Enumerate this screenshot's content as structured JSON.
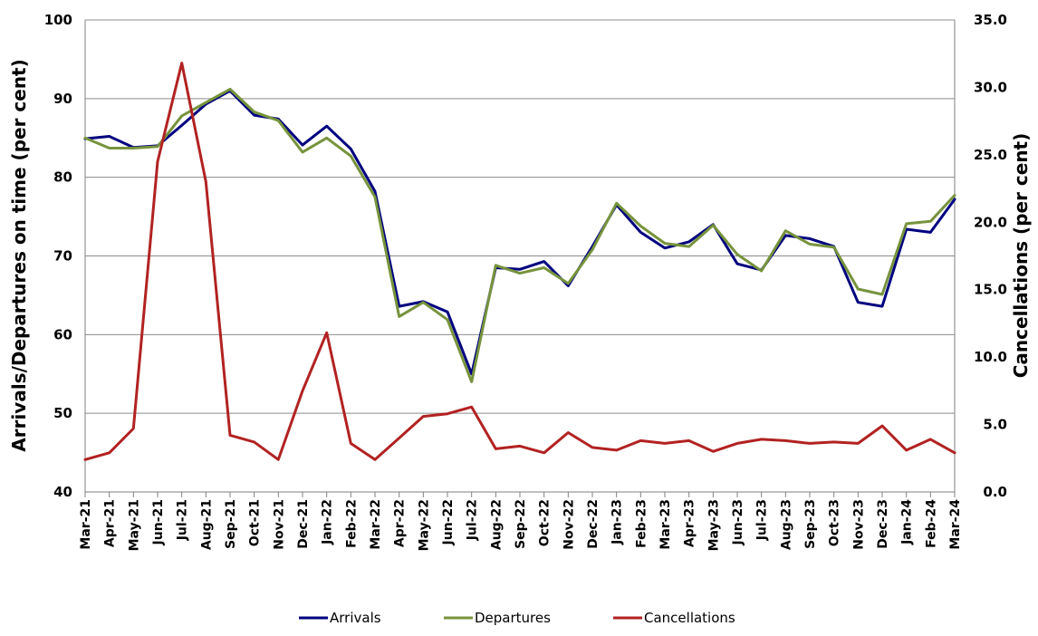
{
  "chart_data": {
    "type": "line",
    "categories": [
      "Mar-21",
      "Apr-21",
      "May-21",
      "Jun-21",
      "Jul-21",
      "Aug-21",
      "Sep-21",
      "Oct-21",
      "Nov-21",
      "Dec-21",
      "Jan-22",
      "Feb-22",
      "Mar-22",
      "Apr-22",
      "May-22",
      "Jun-22",
      "Jul-22",
      "Aug-22",
      "Sep-22",
      "Oct-22",
      "Nov-22",
      "Dec-22",
      "Jan-23",
      "Feb-23",
      "Mar-23",
      "Apr-23",
      "May-23",
      "Jun-23",
      "Jul-23",
      "Aug-23",
      "Sep-23",
      "Oct-23",
      "Nov-23",
      "Dec-23",
      "Jan-24",
      "Feb-24",
      "Mar-24"
    ],
    "title": "",
    "ylabel_left": "Arrivals/Departures on time (per cent)",
    "ylabel_right": "Cancellations (per cent)",
    "ylim_left": [
      40,
      100
    ],
    "ylim_right": [
      0,
      35
    ],
    "yticks_left": [
      "40",
      "50",
      "60",
      "70",
      "80",
      "90",
      "100"
    ],
    "yticks_right": [
      "0.0",
      "5.0",
      "10.0",
      "15.0",
      "20.0",
      "25.0",
      "30.0",
      "35.0"
    ],
    "grid": true,
    "legend_position": "bottom",
    "series": [
      {
        "name": "Arrivals",
        "axis": "left",
        "color": "#000080",
        "values": [
          84.9,
          85.2,
          83.8,
          84.0,
          86.6,
          89.3,
          91.0,
          87.9,
          87.4,
          84.1,
          86.5,
          83.6,
          78.2,
          63.6,
          64.2,
          62.9,
          55.0,
          68.5,
          68.3,
          69.3,
          66.2,
          71.2,
          76.5,
          73.0,
          71.0,
          71.8,
          74.0,
          69.0,
          68.2,
          72.6,
          72.2,
          71.2,
          64.1,
          63.6,
          73.4,
          73.0,
          77.2
        ]
      },
      {
        "name": "Departures",
        "axis": "left",
        "color": "#77933C",
        "values": [
          85.0,
          83.7,
          83.7,
          83.9,
          87.8,
          89.5,
          91.2,
          88.3,
          87.2,
          83.2,
          85.0,
          82.7,
          77.5,
          62.3,
          64.1,
          61.9,
          54.0,
          68.8,
          67.8,
          68.5,
          66.5,
          70.8,
          76.7,
          73.8,
          71.6,
          71.2,
          73.9,
          70.2,
          68.1,
          73.2,
          71.5,
          71.1,
          65.8,
          65.1,
          74.1,
          74.4,
          77.7
        ]
      },
      {
        "name": "Cancellations",
        "axis": "right",
        "color": "#B22222",
        "values": [
          2.4,
          2.9,
          4.7,
          24.5,
          31.8,
          23.0,
          4.2,
          3.7,
          2.4,
          7.5,
          11.8,
          3.6,
          2.4,
          4.0,
          5.6,
          5.8,
          6.3,
          3.2,
          3.4,
          2.9,
          4.4,
          3.3,
          3.1,
          3.8,
          3.6,
          3.8,
          3.0,
          3.6,
          3.9,
          3.8,
          3.6,
          3.7,
          3.6,
          4.9,
          3.1,
          3.9,
          2.9
        ]
      }
    ]
  }
}
